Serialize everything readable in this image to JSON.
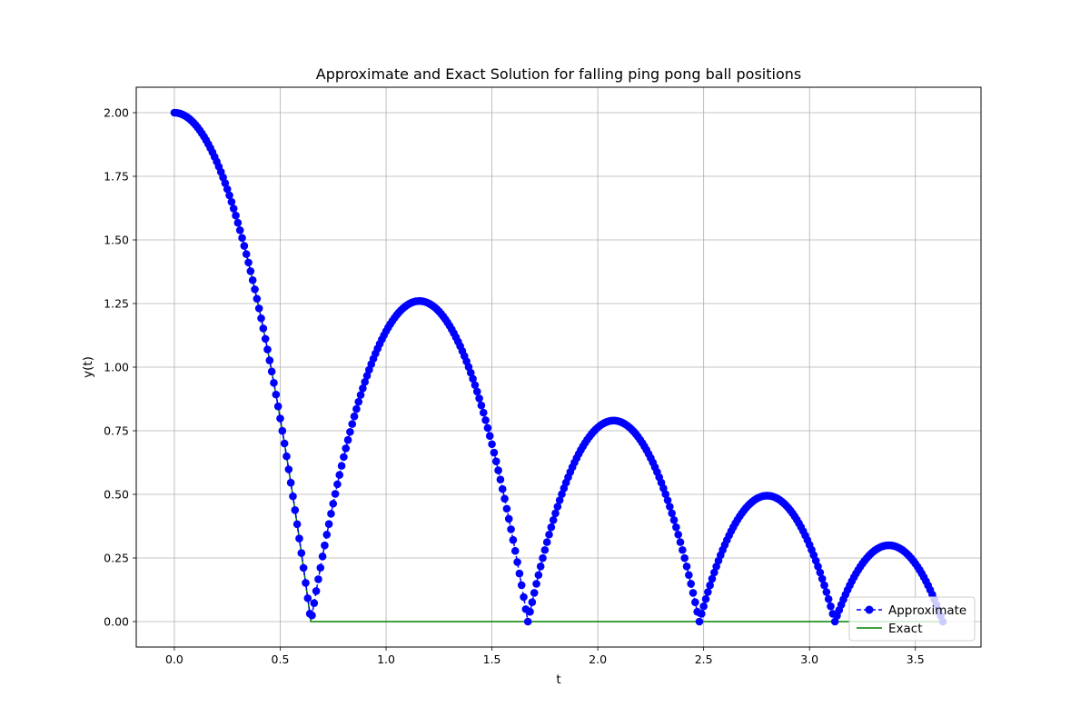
{
  "chart_data": {
    "type": "line",
    "title": "Approximate and Exact Solution for falling ping pong ball positions",
    "xlabel": "t",
    "ylabel": "y(t)",
    "xlim": [
      -0.18,
      3.81
    ],
    "ylim": [
      -0.1,
      2.1
    ],
    "xticks": [
      "0.0",
      "0.5",
      "1.0",
      "1.5",
      "2.0",
      "2.5",
      "3.0",
      "3.5"
    ],
    "yticks": [
      "0.00",
      "0.25",
      "0.50",
      "0.75",
      "1.00",
      "1.25",
      "1.50",
      "1.75",
      "2.00"
    ],
    "grid": true,
    "legend_position": "lower-right",
    "series": [
      {
        "name": "Approximate",
        "style": "dashed line with circle markers",
        "color": "#0000ff",
        "dt": 0.01,
        "initial_height": 2.0,
        "bounce_times": [
          0.0,
          0.645,
          1.67,
          2.48,
          3.12,
          3.63
        ],
        "bounce_peaks": [
          2.0,
          1.26,
          0.79,
          0.495,
          0.3
        ]
      },
      {
        "name": "Exact",
        "style": "solid line",
        "color": "#008000",
        "t_impact": 0.645,
        "t_end": 3.63,
        "initial_height": 2.0
      }
    ]
  }
}
